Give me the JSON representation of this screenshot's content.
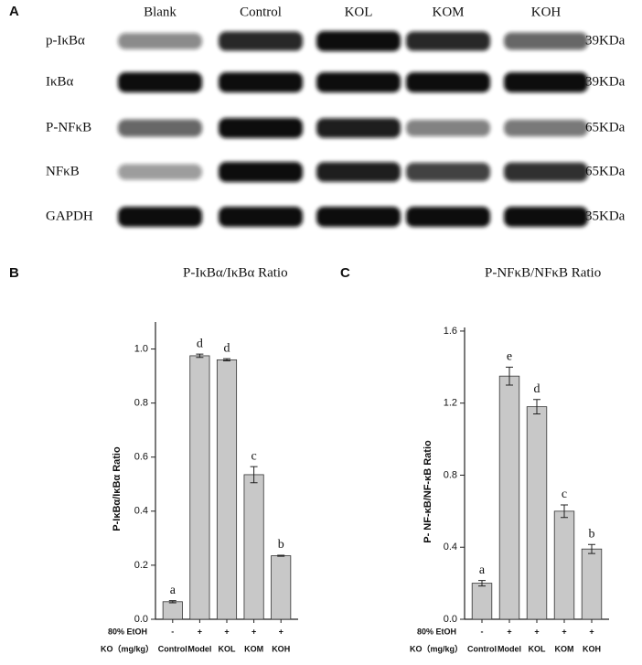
{
  "blot": {
    "panel": "A",
    "lanes": [
      "Blank",
      "Control",
      "KOL",
      "KOM",
      "KOH"
    ],
    "rows": [
      {
        "label": "p-IκBα",
        "size": "39KDa"
      },
      {
        "label": "IκBα",
        "size": "39KDa"
      },
      {
        "label": "P-NFκB",
        "size": "65KDa"
      },
      {
        "label": "NFκB",
        "size": "65KDa"
      },
      {
        "label": "GAPDH",
        "size": "35KDa"
      }
    ]
  },
  "chart_data": [
    {
      "type": "bar",
      "panel": "B",
      "title": "P-IκBα/IκBα Ratio",
      "y_label": "P-IκBα/IκBα Ratio",
      "row_labels": [
        "80% EtOH",
        "KO（mg/kg）"
      ],
      "etoh": [
        "-",
        "+",
        "+",
        "+",
        "+"
      ],
      "categories": [
        "Control",
        "Model",
        "KOL",
        "KOM",
        "KOH"
      ],
      "values": [
        0.065,
        0.975,
        0.96,
        0.535,
        0.235
      ],
      "errors": [
        0.004,
        0.006,
        0.004,
        0.03,
        0.002
      ],
      "annotations": [
        "a",
        "d",
        "d",
        "c",
        "b"
      ],
      "color": "#c8c8c8",
      "ylim": [
        0,
        1.1
      ],
      "yticks": [
        {
          "value": 0,
          "label": "0.0"
        },
        {
          "value": 0.2,
          "label": "0.2"
        },
        {
          "value": 0.4,
          "label": "0.4"
        },
        {
          "value": 0.6,
          "label": "0.6"
        },
        {
          "value": 0.8,
          "label": "0.8"
        },
        {
          "value": 1,
          "label": "1.0"
        }
      ],
      "grid": false
    },
    {
      "type": "bar",
      "panel": "C",
      "title": "P-NFκB/NFκB Ratio",
      "y_label": "P- NF-κB/NF-κB Ratio",
      "row_labels": [
        "80% EtOH",
        "KO（mg/kg）"
      ],
      "etoh": [
        "-",
        "+",
        "+",
        "+",
        "+"
      ],
      "categories": [
        "Control",
        "Model",
        "KOL",
        "KOM",
        "KOH"
      ],
      "values": [
        0.2,
        1.35,
        1.18,
        0.6,
        0.39
      ],
      "errors": [
        0.015,
        0.05,
        0.04,
        0.035,
        0.025
      ],
      "annotations": [
        "a",
        "e",
        "d",
        "c",
        "b"
      ],
      "color": "#c8c8c8",
      "ylim": [
        0,
        1.62
      ],
      "yticks": [
        {
          "value": 0,
          "label": "0.0"
        },
        {
          "value": 0.4,
          "label": "0.4"
        },
        {
          "value": 0.8,
          "label": "0.8"
        },
        {
          "value": 1.2,
          "label": "1.2"
        },
        {
          "value": 1.6,
          "label": "1.6"
        }
      ],
      "grid": false
    }
  ]
}
